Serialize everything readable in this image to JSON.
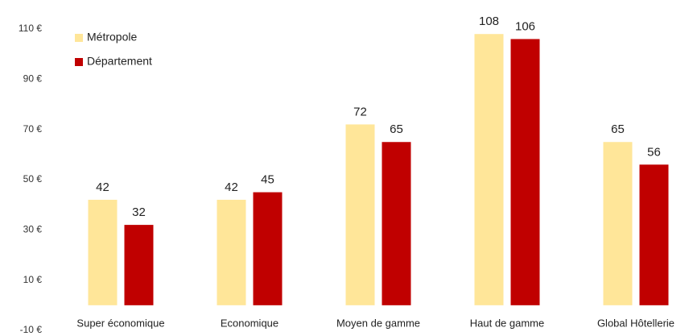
{
  "chart_data": {
    "type": "bar",
    "categories": [
      "Super économique",
      "Economique",
      "Moyen de gamme",
      "Haut de gamme",
      "Global Hôtellerie"
    ],
    "series": [
      {
        "name": "Métropole",
        "color": "#FFE699",
        "values": [
          42,
          42,
          72,
          108,
          65
        ]
      },
      {
        "name": "Département",
        "color": "#C00000",
        "values": [
          32,
          45,
          65,
          106,
          56
        ]
      }
    ],
    "ylim": [
      -10,
      110
    ],
    "yticks": [
      {
        "value": -10,
        "label": "-10 €"
      },
      {
        "value": 10,
        "label": "10 €"
      },
      {
        "value": 30,
        "label": "30 €"
      },
      {
        "value": 50,
        "label": "50 €"
      },
      {
        "value": 70,
        "label": "70 €"
      },
      {
        "value": 90,
        "label": "90 €"
      },
      {
        "value": 110,
        "label": "110 €"
      }
    ],
    "grid": false,
    "legend": "top-left"
  }
}
